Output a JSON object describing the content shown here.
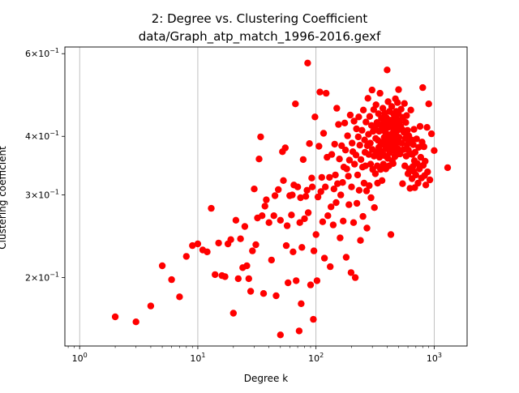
{
  "chart_data": {
    "type": "scatter",
    "title": "2: Degree vs. Clustering Coefficient",
    "subtitle": "data/Graph_atp_match_1996-2016.gexf",
    "xlabel": "Degree k",
    "ylabel": "Clustering coefficient",
    "xscale": "log",
    "yscale": "log",
    "xlim": [
      0.75,
      1900
    ],
    "ylim": [
      0.143,
      0.62
    ],
    "grid": "x-major",
    "marker_color": "#ff0000",
    "x_ticks": [
      {
        "value": 1,
        "base": "10",
        "exp": "0"
      },
      {
        "value": 10,
        "base": "10",
        "exp": "1"
      },
      {
        "value": 100,
        "base": "10",
        "exp": "2"
      },
      {
        "value": 1000,
        "base": "10",
        "exp": "3"
      }
    ],
    "y_ticks": [
      {
        "value": 0.2,
        "mant": "2",
        "base": "10",
        "exp": "−1"
      },
      {
        "value": 0.3,
        "mant": "3",
        "base": "10",
        "exp": "−1"
      },
      {
        "value": 0.4,
        "mant": "4",
        "base": "10",
        "exp": "−1"
      },
      {
        "value": 0.6,
        "mant": "6",
        "base": "10",
        "exp": "−1"
      }
    ],
    "points": [
      [
        2,
        0.165
      ],
      [
        3,
        0.161
      ],
      [
        4,
        0.174
      ],
      [
        5,
        0.212
      ],
      [
        6,
        0.198
      ],
      [
        7,
        0.182
      ],
      [
        8,
        0.222
      ],
      [
        9,
        0.234
      ],
      [
        10,
        0.236
      ],
      [
        11,
        0.229
      ],
      [
        12,
        0.227
      ],
      [
        13,
        0.281
      ],
      [
        14,
        0.203
      ],
      [
        15,
        0.237
      ],
      [
        16,
        0.202
      ],
      [
        17,
        0.201
      ],
      [
        18,
        0.236
      ],
      [
        19,
        0.241
      ],
      [
        20,
        0.168
      ],
      [
        21,
        0.265
      ],
      [
        22,
        0.199
      ],
      [
        23,
        0.242
      ],
      [
        24,
        0.21
      ],
      [
        25,
        0.257
      ],
      [
        26,
        0.212
      ],
      [
        27,
        0.199
      ],
      [
        28,
        0.187
      ],
      [
        29,
        0.228
      ],
      [
        30,
        0.309
      ],
      [
        31,
        0.235
      ],
      [
        32,
        0.268
      ],
      [
        33,
        0.358
      ],
      [
        34,
        0.399
      ],
      [
        35,
        0.271
      ],
      [
        36,
        0.185
      ],
      [
        37,
        0.284
      ],
      [
        38,
        0.293
      ],
      [
        40,
        0.262
      ],
      [
        42,
        0.218
      ],
      [
        44,
        0.271
      ],
      [
        45,
        0.299
      ],
      [
        46,
        0.183
      ],
      [
        48,
        0.308
      ],
      [
        50,
        0.151
      ],
      [
        50,
        0.265
      ],
      [
        52,
        0.371
      ],
      [
        53,
        0.322
      ],
      [
        55,
        0.378
      ],
      [
        56,
        0.234
      ],
      [
        57,
        0.258
      ],
      [
        58,
        0.195
      ],
      [
        60,
        0.299
      ],
      [
        62,
        0.272
      ],
      [
        63,
        0.3
      ],
      [
        64,
        0.227
      ],
      [
        65,
        0.315
      ],
      [
        67,
        0.469
      ],
      [
        68,
        0.197
      ],
      [
        70,
        0.312
      ],
      [
        72,
        0.154
      ],
      [
        73,
        0.262
      ],
      [
        74,
        0.296
      ],
      [
        75,
        0.176
      ],
      [
        76,
        0.232
      ],
      [
        78,
        0.357
      ],
      [
        80,
        0.267
      ],
      [
        82,
        0.298
      ],
      [
        84,
        0.307
      ],
      [
        85,
        0.573
      ],
      [
        86,
        0.275
      ],
      [
        88,
        0.386
      ],
      [
        90,
        0.193
      ],
      [
        92,
        0.326
      ],
      [
        93,
        0.312
      ],
      [
        95,
        0.163
      ],
      [
        96,
        0.228
      ],
      [
        98,
        0.44
      ],
      [
        100,
        0.247
      ],
      [
        102,
        0.197
      ],
      [
        104,
        0.297
      ],
      [
        106,
        0.381
      ],
      [
        108,
        0.497
      ],
      [
        110,
        0.305
      ],
      [
        112,
        0.327
      ],
      [
        114,
        0.263
      ],
      [
        116,
        0.406
      ],
      [
        118,
        0.22
      ],
      [
        120,
        0.312
      ],
      [
        122,
        0.494
      ],
      [
        124,
        0.361
      ],
      [
        126,
        0.271
      ],
      [
        130,
        0.327
      ],
      [
        132,
        0.211
      ],
      [
        134,
        0.283
      ],
      [
        136,
        0.366
      ],
      [
        140,
        0.259
      ],
      [
        142,
        0.309
      ],
      [
        144,
        0.385
      ],
      [
        146,
        0.331
      ],
      [
        148,
        0.289
      ],
      [
        150,
        0.459
      ],
      [
        152,
        0.317
      ],
      [
        155,
        0.424
      ],
      [
        158,
        0.358
      ],
      [
        160,
        0.243
      ],
      [
        162,
        0.3
      ],
      [
        165,
        0.382
      ],
      [
        168,
        0.319
      ],
      [
        170,
        0.264
      ],
      [
        172,
        0.344
      ],
      [
        175,
        0.427
      ],
      [
        178,
        0.374
      ],
      [
        180,
        0.221
      ],
      [
        182,
        0.341
      ],
      [
        185,
        0.401
      ],
      [
        188,
        0.329
      ],
      [
        190,
        0.286
      ],
      [
        192,
        0.356
      ],
      [
        195,
        0.444
      ],
      [
        198,
        0.205
      ],
      [
        200,
        0.312
      ],
      [
        202,
        0.387
      ],
      [
        205,
        0.371
      ],
      [
        208,
        0.262
      ],
      [
        210,
        0.431
      ],
      [
        212,
        0.349
      ],
      [
        215,
        0.2
      ],
      [
        218,
        0.365
      ],
      [
        220,
        0.415
      ],
      [
        222,
        0.288
      ],
      [
        225,
        0.331
      ],
      [
        228,
        0.399
      ],
      [
        230,
        0.44
      ],
      [
        232,
        0.307
      ],
      [
        235,
        0.383
      ],
      [
        238,
        0.24
      ],
      [
        240,
        0.357
      ],
      [
        245,
        0.412
      ],
      [
        248,
        0.344
      ],
      [
        250,
        0.27
      ],
      [
        252,
        0.455
      ],
      [
        255,
        0.318
      ],
      [
        258,
        0.393
      ],
      [
        260,
        0.37
      ],
      [
        262,
        0.346
      ],
      [
        265,
        0.429
      ],
      [
        268,
        0.306
      ],
      [
        270,
        0.255
      ],
      [
        272,
        0.382
      ],
      [
        275,
        0.482
      ],
      [
        278,
        0.404
      ],
      [
        280,
        0.366
      ],
      [
        282,
        0.314
      ],
      [
        285,
        0.441
      ],
      [
        288,
        0.387
      ],
      [
        290,
        0.349
      ],
      [
        292,
        0.296
      ],
      [
        295,
        0.422
      ],
      [
        298,
        0.502
      ],
      [
        300,
        0.375
      ],
      [
        302,
        0.34
      ],
      [
        305,
        0.41
      ],
      [
        308,
        0.456
      ],
      [
        310,
        0.363
      ],
      [
        312,
        0.282
      ],
      [
        315,
        0.417
      ],
      [
        318,
        0.333
      ],
      [
        320,
        0.396
      ],
      [
        322,
        0.467
      ],
      [
        325,
        0.37
      ],
      [
        328,
        0.428
      ],
      [
        330,
        0.346
      ],
      [
        332,
        0.318
      ],
      [
        335,
        0.392
      ],
      [
        338,
        0.447
      ],
      [
        340,
        0.379
      ],
      [
        342,
        0.41
      ],
      [
        345,
        0.361
      ],
      [
        348,
        0.494
      ],
      [
        350,
        0.423
      ],
      [
        352,
        0.34
      ],
      [
        355,
        0.388
      ],
      [
        358,
        0.437
      ],
      [
        360,
        0.371
      ],
      [
        362,
        0.322
      ],
      [
        365,
        0.412
      ],
      [
        368,
        0.459
      ],
      [
        370,
        0.384
      ],
      [
        372,
        0.349
      ],
      [
        375,
        0.427
      ],
      [
        378,
        0.398
      ],
      [
        380,
        0.364
      ],
      [
        382,
        0.448
      ],
      [
        385,
        0.416
      ],
      [
        388,
        0.376
      ],
      [
        390,
        0.341
      ],
      [
        392,
        0.406
      ],
      [
        395,
        0.438
      ],
      [
        398,
        0.392
      ],
      [
        400,
        0.554
      ],
      [
        402,
        0.427
      ],
      [
        405,
        0.359
      ],
      [
        408,
        0.474
      ],
      [
        410,
        0.418
      ],
      [
        412,
        0.383
      ],
      [
        415,
        0.346
      ],
      [
        418,
        0.452
      ],
      [
        420,
        0.402
      ],
      [
        422,
        0.369
      ],
      [
        425,
        0.433
      ],
      [
        428,
        0.391
      ],
      [
        430,
        0.247
      ],
      [
        432,
        0.42
      ],
      [
        435,
        0.378
      ],
      [
        438,
        0.463
      ],
      [
        440,
        0.405
      ],
      [
        442,
        0.355
      ],
      [
        445,
        0.426
      ],
      [
        448,
        0.388
      ],
      [
        450,
        0.35
      ],
      [
        452,
        0.447
      ],
      [
        455,
        0.411
      ],
      [
        458,
        0.373
      ],
      [
        460,
        0.438
      ],
      [
        462,
        0.397
      ],
      [
        465,
        0.362
      ],
      [
        468,
        0.425
      ],
      [
        470,
        0.481
      ],
      [
        472,
        0.384
      ],
      [
        475,
        0.417
      ],
      [
        478,
        0.452
      ],
      [
        480,
        0.401
      ],
      [
        482,
        0.366
      ],
      [
        485,
        0.435
      ],
      [
        488,
        0.39
      ],
      [
        490,
        0.472
      ],
      [
        492,
        0.412
      ],
      [
        495,
        0.376
      ],
      [
        498,
        0.447
      ],
      [
        500,
        0.503
      ],
      [
        505,
        0.398
      ],
      [
        510,
        0.43
      ],
      [
        515,
        0.367
      ],
      [
        520,
        0.42
      ],
      [
        525,
        0.457
      ],
      [
        530,
        0.387
      ],
      [
        535,
        0.414
      ],
      [
        540,
        0.317
      ],
      [
        545,
        0.439
      ],
      [
        550,
        0.375
      ],
      [
        555,
        0.408
      ],
      [
        560,
        0.47
      ],
      [
        565,
        0.346
      ],
      [
        570,
        0.396
      ],
      [
        575,
        0.428
      ],
      [
        580,
        0.363
      ],
      [
        585,
        0.443
      ],
      [
        590,
        0.384
      ],
      [
        595,
        0.412
      ],
      [
        600,
        0.333
      ],
      [
        605,
        0.374
      ],
      [
        610,
        0.401
      ],
      [
        615,
        0.341
      ],
      [
        620,
        0.389
      ],
      [
        625,
        0.31
      ],
      [
        630,
        0.367
      ],
      [
        635,
        0.455
      ],
      [
        640,
        0.339
      ],
      [
        645,
        0.393
      ],
      [
        650,
        0.325
      ],
      [
        655,
        0.366
      ],
      [
        660,
        0.345
      ],
      [
        665,
        0.384
      ],
      [
        670,
        0.337
      ],
      [
        675,
        0.414
      ],
      [
        680,
        0.355
      ],
      [
        685,
        0.311
      ],
      [
        690,
        0.37
      ],
      [
        700,
        0.331
      ],
      [
        710,
        0.395
      ],
      [
        720,
        0.35
      ],
      [
        730,
        0.318
      ],
      [
        740,
        0.379
      ],
      [
        750,
        0.341
      ],
      [
        760,
        0.42
      ],
      [
        770,
        0.361
      ],
      [
        780,
        0.326
      ],
      [
        790,
        0.389
      ],
      [
        800,
        0.508
      ],
      [
        810,
        0.347
      ],
      [
        820,
        0.38
      ],
      [
        830,
        0.33
      ],
      [
        840,
        0.354
      ],
      [
        850,
        0.315
      ],
      [
        870,
        0.418
      ],
      [
        880,
        0.336
      ],
      [
        900,
        0.469
      ],
      [
        920,
        0.323
      ],
      [
        950,
        0.405
      ],
      [
        1000,
        0.373
      ],
      [
        1300,
        0.343
      ]
    ]
  }
}
